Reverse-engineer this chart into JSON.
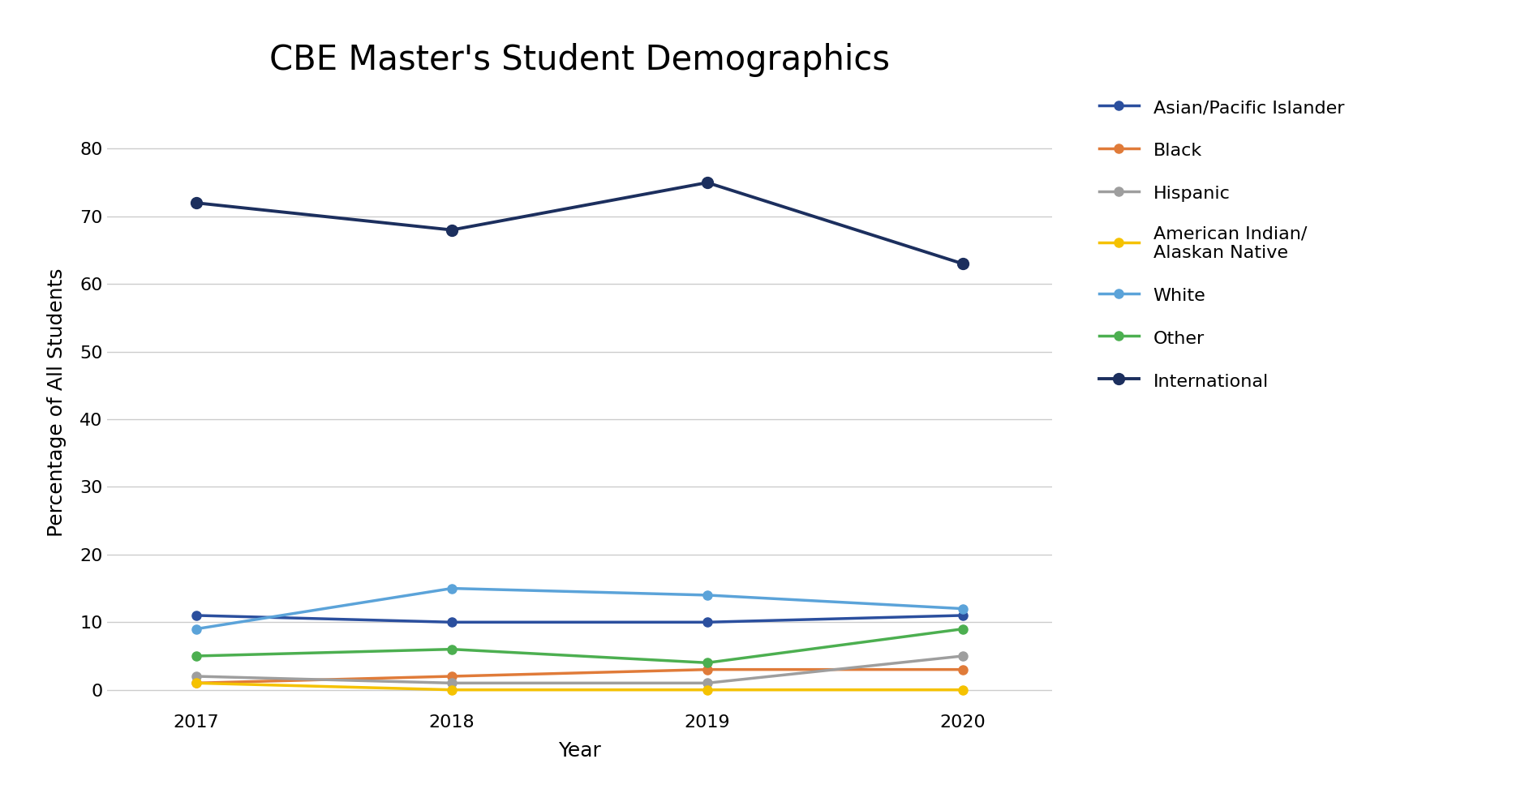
{
  "title": "CBE Master's Student Demographics",
  "xlabel": "Year",
  "ylabel": "Percentage of All Students",
  "years": [
    2017,
    2018,
    2019,
    2020
  ],
  "series": [
    {
      "label": "Asian/Pacific Islander",
      "color": "#2B4F9E",
      "values": [
        11,
        10,
        10,
        11
      ],
      "marker": "o",
      "linewidth": 2.5,
      "markersize": 8
    },
    {
      "label": "Black",
      "color": "#E07B39",
      "values": [
        1,
        2,
        3,
        3
      ],
      "marker": "o",
      "linewidth": 2.5,
      "markersize": 8
    },
    {
      "label": "Hispanic",
      "color": "#9E9E9E",
      "values": [
        2,
        1,
        1,
        5
      ],
      "marker": "o",
      "linewidth": 2.5,
      "markersize": 8
    },
    {
      "label": "American Indian/\nAlaskan Native",
      "color": "#F5C200",
      "values": [
        1,
        0,
        0,
        0
      ],
      "marker": "o",
      "linewidth": 2.5,
      "markersize": 8
    },
    {
      "label": "White",
      "color": "#5BA3D9",
      "values": [
        9,
        15,
        14,
        12
      ],
      "marker": "o",
      "linewidth": 2.5,
      "markersize": 8
    },
    {
      "label": "Other",
      "color": "#4CAF50",
      "values": [
        5,
        6,
        4,
        9
      ],
      "marker": "o",
      "linewidth": 2.5,
      "markersize": 8
    },
    {
      "label": "International",
      "color": "#1C2F5E",
      "values": [
        72,
        68,
        75,
        63
      ],
      "marker": "o",
      "linewidth": 2.8,
      "markersize": 10
    }
  ],
  "ylim": [
    -3,
    88
  ],
  "yticks": [
    0,
    10,
    20,
    30,
    40,
    50,
    60,
    70,
    80
  ],
  "background_color": "#FFFFFF",
  "grid_color": "#CCCCCC",
  "title_fontsize": 30,
  "axis_label_fontsize": 18,
  "tick_fontsize": 16,
  "legend_fontsize": 16
}
